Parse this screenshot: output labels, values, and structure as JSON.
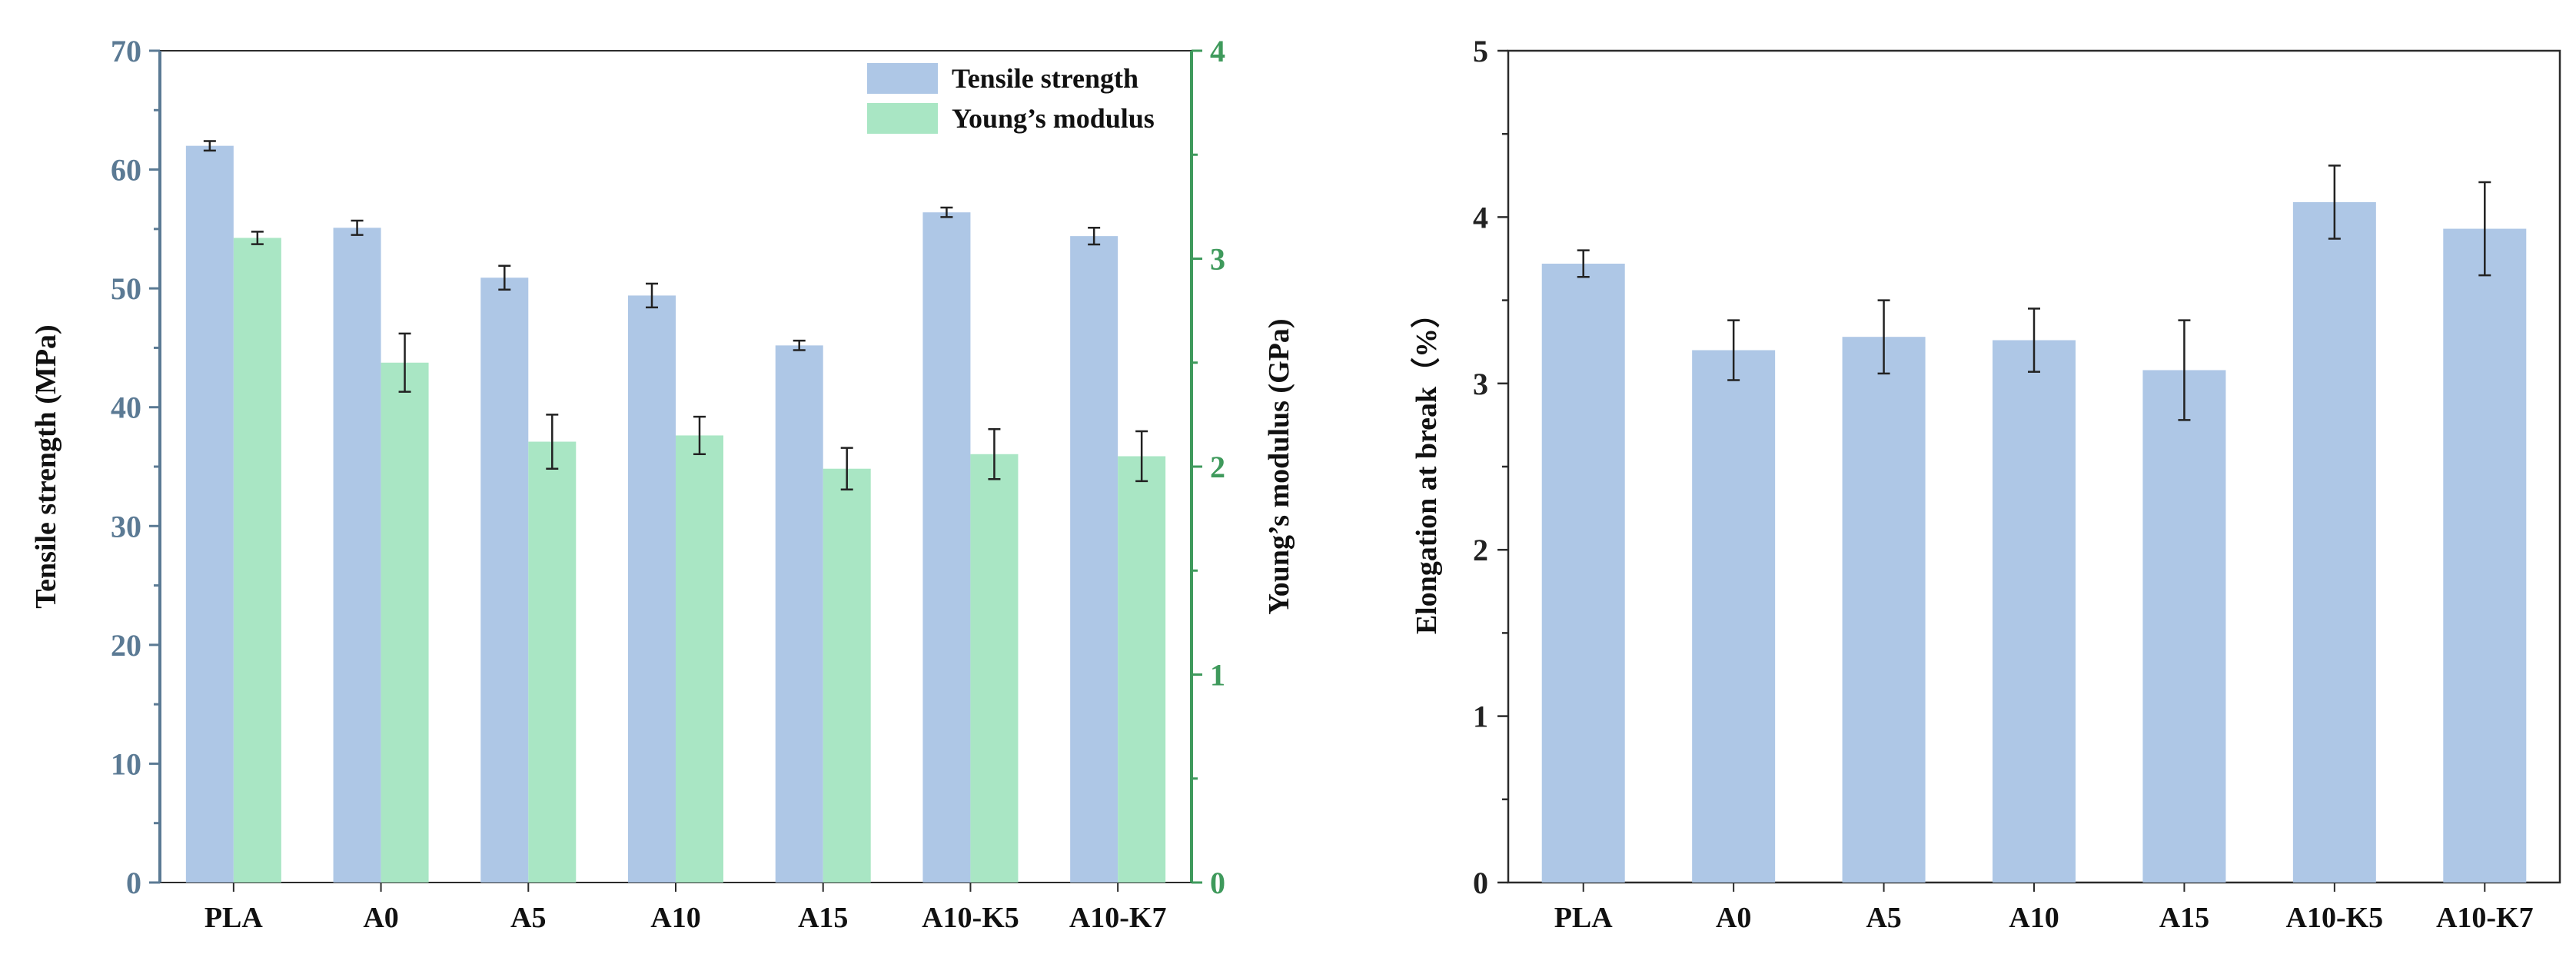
{
  "chart_data": [
    {
      "type": "bar",
      "categories": [
        "PLA",
        "A0",
        "A5",
        "A10",
        "A15",
        "A10-K5",
        "A10-K7"
      ],
      "series": [
        {
          "name": "Tensile strength",
          "axis": "left",
          "color": "#aec7e6",
          "values": [
            62.0,
            55.1,
            50.9,
            49.4,
            45.2,
            56.4,
            54.4
          ],
          "errors": [
            0.4,
            0.6,
            1.0,
            1.0,
            0.4,
            0.4,
            0.7
          ]
        },
        {
          "name": "Young’s modulus",
          "axis": "right",
          "color": "#a9e6c4",
          "values": [
            3.1,
            2.5,
            2.12,
            2.15,
            1.99,
            2.06,
            2.05
          ],
          "errors": [
            0.03,
            0.14,
            0.13,
            0.09,
            0.1,
            0.12,
            0.12
          ]
        }
      ],
      "ylabel": "Tensile strength (MPa)",
      "ylabel_right": "Young’s modulus (GPa)",
      "ylim": [
        0,
        70
      ],
      "yticks": [
        "0",
        "10",
        "20",
        "30",
        "40",
        "50",
        "60",
        "70"
      ],
      "ylim_right": [
        0,
        4
      ],
      "yticks_right": [
        "0",
        "1",
        "2",
        "3",
        "4"
      ],
      "left_axis_color": "#5b7a94",
      "right_axis_color": "#3f9a5c",
      "legend_position": "top-right",
      "grid": false
    },
    {
      "type": "bar",
      "categories": [
        "PLA",
        "A0",
        "A5",
        "A10",
        "A15",
        "A10-K5",
        "A10-K7"
      ],
      "series": [
        {
          "name": "Elongation at break",
          "color": "#aec7e6",
          "values": [
            3.72,
            3.2,
            3.28,
            3.26,
            3.08,
            4.09,
            3.93
          ],
          "errors": [
            0.08,
            0.18,
            0.22,
            0.19,
            0.3,
            0.22,
            0.28
          ]
        }
      ],
      "ylabel": "Elongation at break（%）",
      "ylim": [
        0,
        5
      ],
      "yticks": [
        "0",
        "1",
        "2",
        "3",
        "4",
        "5"
      ],
      "grid": false
    }
  ]
}
